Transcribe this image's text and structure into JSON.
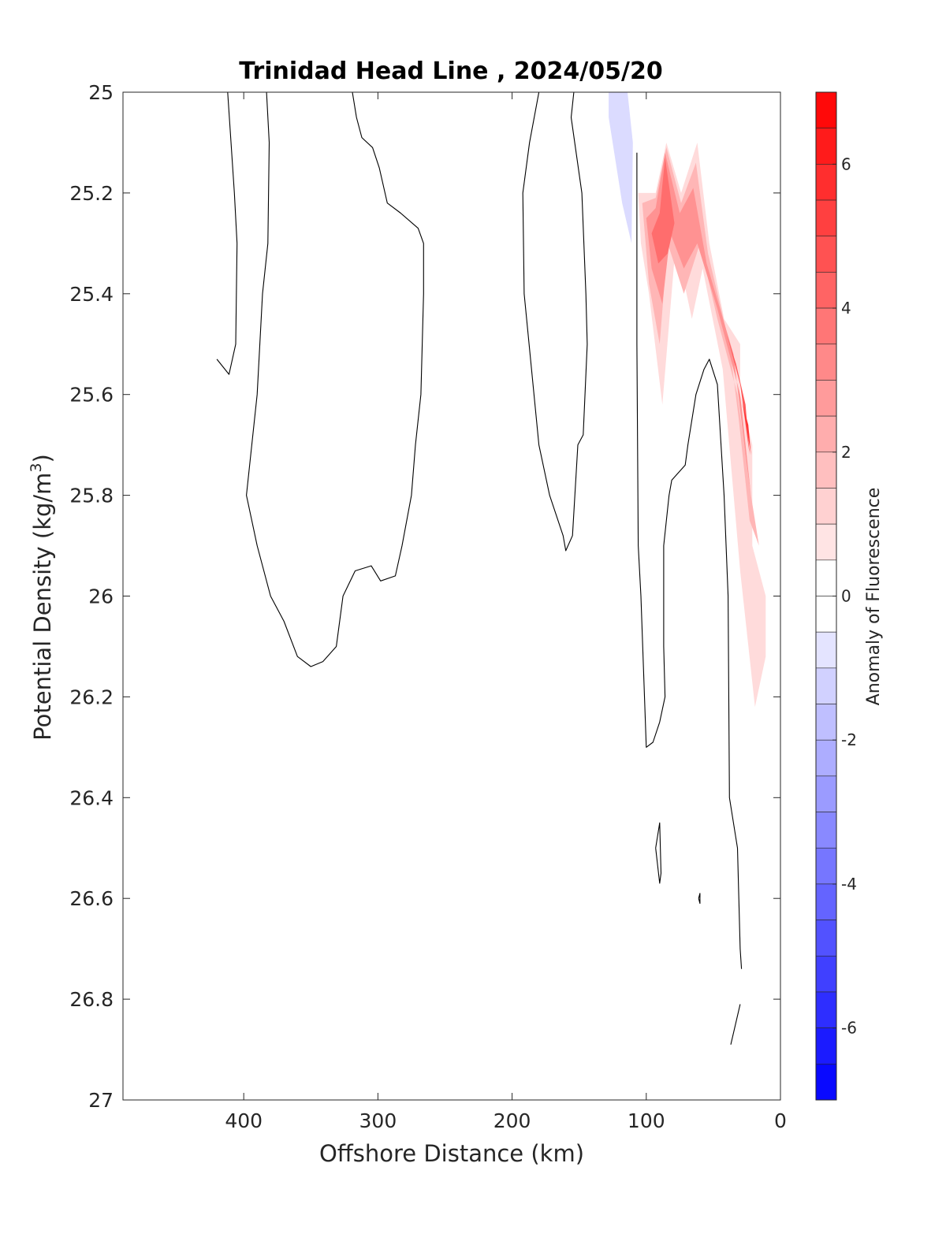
{
  "chart_data": {
    "type": "contour",
    "title": "Trinidad Head Line , 2024/05/20",
    "xlabel": "Offshore Distance (km)",
    "ylabel_main": "Potential Density (kg/m",
    "ylabel_sup": "3",
    "ylabel_end": ")",
    "xlim": [
      490,
      0
    ],
    "ylim": [
      25,
      27
    ],
    "x_reversed": true,
    "y_reversed": true,
    "xticks": [
      400,
      300,
      200,
      100,
      0
    ],
    "xtick_labels": [
      "400",
      "300",
      "200",
      "100",
      "0"
    ],
    "yticks": [
      25,
      25.2,
      25.4,
      25.6,
      25.8,
      26,
      26.2,
      26.4,
      26.6,
      26.8,
      27
    ],
    "ytick_labels": [
      "25",
      "25.2",
      "25.4",
      "25.6",
      "25.8",
      "26",
      "26.2",
      "26.4",
      "26.6",
      "26.8",
      "27"
    ],
    "colorbar": {
      "label": "Anomaly of Fluorescence",
      "range": [
        -7,
        7
      ],
      "level_step": 0.5,
      "ticks": [
        6,
        4,
        2,
        0,
        -2,
        -4,
        -6
      ],
      "tick_labels": [
        "6",
        "4",
        "2",
        "0",
        "-2",
        "-4",
        "-6"
      ],
      "color_max": "#ff0000",
      "color_min": "#0000ff",
      "color_mid": "#ffffff"
    },
    "filled_regions": [
      {
        "level": 1,
        "points": [
          [
            106,
            25.2
          ],
          [
            93,
            25.2
          ],
          [
            85,
            25.1
          ],
          [
            74,
            25.2
          ],
          [
            62,
            25.1
          ],
          [
            53,
            25.3
          ],
          [
            42,
            25.45
          ],
          [
            30,
            25.5
          ],
          [
            30,
            25.6
          ],
          [
            21,
            25.7
          ],
          [
            21,
            25.9
          ],
          [
            11,
            26.0
          ],
          [
            11,
            26.12
          ],
          [
            19,
            26.22
          ],
          [
            30,
            25.95
          ],
          [
            43,
            25.55
          ],
          [
            58,
            25.35
          ],
          [
            66,
            25.45
          ],
          [
            78,
            25.3
          ],
          [
            88,
            25.62
          ],
          [
            98,
            25.4
          ],
          [
            104,
            25.3
          ]
        ]
      },
      {
        "level": 2,
        "points": [
          [
            103,
            25.22
          ],
          [
            93,
            25.21
          ],
          [
            85,
            25.11
          ],
          [
            74,
            25.22
          ],
          [
            63,
            25.14
          ],
          [
            54,
            25.32
          ],
          [
            38,
            25.5
          ],
          [
            31,
            25.65
          ],
          [
            23,
            25.85
          ],
          [
            16,
            25.9
          ],
          [
            22,
            25.8
          ],
          [
            32,
            25.6
          ],
          [
            47,
            25.45
          ],
          [
            60,
            25.3
          ],
          [
            72,
            25.4
          ],
          [
            84,
            25.3
          ],
          [
            90,
            25.5
          ],
          [
            98,
            25.38
          ]
        ]
      },
      {
        "level": 3,
        "points": [
          [
            100,
            25.25
          ],
          [
            93,
            25.23
          ],
          [
            86,
            25.12
          ],
          [
            75,
            25.24
          ],
          [
            65,
            25.19
          ],
          [
            55,
            25.34
          ],
          [
            35,
            25.52
          ],
          [
            26,
            25.72
          ],
          [
            22,
            25.8
          ],
          [
            30,
            25.6
          ],
          [
            47,
            25.43
          ],
          [
            62,
            25.3
          ],
          [
            72,
            25.35
          ],
          [
            82,
            25.28
          ],
          [
            88,
            25.42
          ],
          [
            96,
            25.35
          ]
        ]
      },
      {
        "level": 4,
        "points": [
          [
            96,
            25.28
          ],
          [
            90,
            25.24
          ],
          [
            86,
            25.13
          ],
          [
            79,
            25.26
          ],
          [
            84,
            25.32
          ],
          [
            91,
            25.34
          ]
        ]
      },
      {
        "level": 4.5,
        "points": [
          [
            40,
            25.48
          ],
          [
            30,
            25.58
          ],
          [
            23,
            25.72
          ],
          [
            26,
            25.62
          ],
          [
            33,
            25.54
          ]
        ]
      },
      {
        "level": 5.5,
        "points": [
          [
            28,
            25.62
          ],
          [
            22,
            25.72
          ],
          [
            24,
            25.66
          ]
        ]
      },
      {
        "level": -1,
        "points": [
          [
            128,
            25.0
          ],
          [
            114,
            25.0
          ],
          [
            110,
            25.1
          ],
          [
            111,
            25.3
          ],
          [
            118,
            25.22
          ],
          [
            128,
            25.05
          ]
        ]
      }
    ],
    "zero_contours": [
      {
        "points": [
          [
            412,
            25.0
          ],
          [
            407,
            25.2
          ],
          [
            405,
            25.3
          ],
          [
            406,
            25.5
          ],
          [
            411,
            25.56
          ],
          [
            420,
            25.53
          ]
        ]
      },
      {
        "points": [
          [
            383,
            25.0
          ],
          [
            381,
            25.1
          ],
          [
            382,
            25.3
          ],
          [
            386,
            25.4
          ],
          [
            390,
            25.6
          ],
          [
            394,
            25.7
          ],
          [
            398,
            25.8
          ],
          [
            390,
            25.9
          ],
          [
            380,
            26.0
          ],
          [
            370,
            26.05
          ],
          [
            360,
            26.12
          ],
          [
            350,
            26.14
          ],
          [
            341,
            26.13
          ],
          [
            331,
            26.1
          ],
          [
            326,
            26.0
          ],
          [
            317,
            25.95
          ],
          [
            305,
            25.94
          ],
          [
            298,
            25.97
          ],
          [
            287,
            25.96
          ],
          [
            282,
            25.9
          ],
          [
            275,
            25.8
          ],
          [
            272,
            25.7
          ],
          [
            268,
            25.6
          ],
          [
            266,
            25.4
          ],
          [
            266,
            25.3
          ],
          [
            270,
            25.27
          ],
          [
            283,
            25.24
          ],
          [
            293,
            25.22
          ],
          [
            299,
            25.15
          ],
          [
            304,
            25.11
          ],
          [
            312,
            25.09
          ],
          [
            316,
            25.05
          ],
          [
            319,
            25.0
          ]
        ]
      },
      {
        "points": [
          [
            180,
            25.0
          ],
          [
            187,
            25.1
          ],
          [
            192,
            25.2
          ],
          [
            191,
            25.4
          ],
          [
            180,
            25.7
          ],
          [
            172,
            25.8
          ],
          [
            162,
            25.88
          ],
          [
            160,
            25.91
          ],
          [
            155,
            25.88
          ],
          [
            151,
            25.7
          ],
          [
            147,
            25.68
          ],
          [
            144,
            25.5
          ],
          [
            145,
            25.4
          ],
          [
            148,
            25.2
          ],
          [
            156,
            25.05
          ],
          [
            154,
            25.0
          ]
        ]
      },
      {
        "points": [
          [
            107,
            25.12
          ],
          [
            107,
            25.3
          ],
          [
            107,
            25.5
          ],
          [
            106,
            25.9
          ],
          [
            104,
            26.0
          ],
          [
            100,
            26.3
          ],
          [
            95,
            26.29
          ],
          [
            90,
            26.25
          ],
          [
            86,
            26.2
          ],
          [
            87,
            26.1
          ],
          [
            87,
            25.9
          ],
          [
            83,
            25.8
          ],
          [
            81,
            25.77
          ],
          [
            71,
            25.74
          ],
          [
            69,
            25.7
          ],
          [
            63,
            25.6
          ],
          [
            57,
            25.55
          ],
          [
            53,
            25.53
          ],
          [
            47,
            25.58
          ],
          [
            42,
            25.8
          ],
          [
            39,
            26.0
          ],
          [
            38,
            26.4
          ],
          [
            35,
            26.45
          ],
          [
            32,
            26.5
          ],
          [
            31,
            26.6
          ],
          [
            30,
            26.7
          ],
          [
            29,
            26.74
          ]
        ]
      },
      {
        "points": [
          [
            93,
            26.5
          ],
          [
            90,
            26.45
          ],
          [
            89,
            26.55
          ],
          [
            90,
            26.57
          ],
          [
            93,
            26.5
          ]
        ]
      },
      {
        "points": [
          [
            61,
            26.6
          ],
          [
            60,
            26.59
          ],
          [
            60,
            26.61
          ],
          [
            61,
            26.6
          ]
        ]
      },
      {
        "points": [
          [
            30,
            26.81
          ],
          [
            37,
            26.89
          ]
        ]
      }
    ]
  }
}
